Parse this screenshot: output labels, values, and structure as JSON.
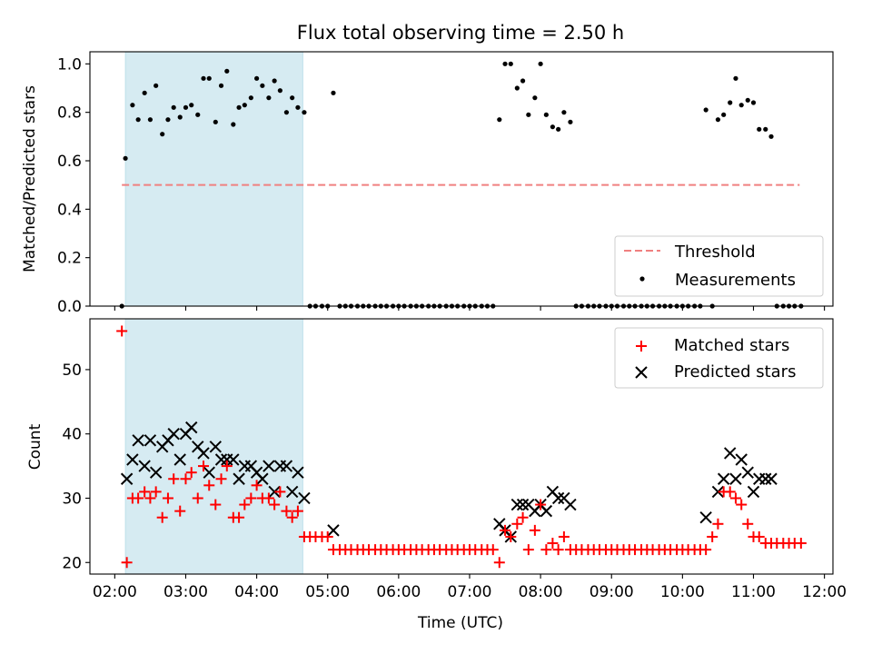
{
  "chart_data": [
    {
      "type": "scatter",
      "title": "Flux total observing time = 2.50 h",
      "xlabel": "",
      "ylabel": "Matched/Predicted stars",
      "xlim": [
        1.65,
        12.12
      ],
      "ylim": [
        0.0,
        1.05
      ],
      "yticks": [
        0.0,
        0.2,
        0.4,
        0.6,
        0.8,
        1.0
      ],
      "ytick_labels": [
        "0.0",
        "0.2",
        "0.4",
        "0.6",
        "0.8",
        "1.0"
      ],
      "highlight_span": [
        2.15,
        4.65
      ],
      "colors": {
        "highlight": "#add8e6",
        "threshold": "#f08080",
        "measurements": "#000000"
      },
      "legend": {
        "placement": "lower right",
        "entries": [
          "Threshold",
          "Measurements"
        ]
      },
      "threshold": {
        "name": "Threshold",
        "y": 0.5,
        "x_range": [
          2.1,
          11.65
        ]
      },
      "series": [
        {
          "name": "Measurements",
          "x": [
            2.1,
            2.15,
            2.25,
            2.33,
            2.42,
            2.5,
            2.58,
            2.67,
            2.75,
            2.83,
            2.92,
            3.0,
            3.08,
            3.17,
            3.25,
            3.33,
            3.42,
            3.5,
            3.58,
            3.67,
            3.75,
            3.83,
            3.92,
            4.0,
            4.08,
            4.17,
            4.25,
            4.33,
            4.42,
            4.5,
            4.58,
            4.67,
            4.75,
            4.83,
            4.92,
            5.0,
            5.08,
            5.17,
            5.25,
            5.33,
            5.42,
            5.5,
            5.58,
            5.67,
            5.75,
            5.83,
            5.92,
            6.0,
            6.08,
            6.17,
            6.25,
            6.33,
            6.42,
            6.5,
            6.58,
            6.67,
            6.75,
            6.83,
            6.92,
            7.0,
            7.08,
            7.17,
            7.25,
            7.33,
            7.42,
            7.5,
            7.58,
            7.67,
            7.75,
            7.83,
            7.92,
            8.0,
            8.08,
            8.17,
            8.25,
            8.33,
            8.42,
            8.5,
            8.58,
            8.67,
            8.75,
            8.83,
            8.92,
            9.0,
            9.08,
            9.17,
            9.25,
            9.33,
            9.42,
            9.5,
            9.58,
            9.67,
            9.75,
            9.83,
            9.92,
            10.0,
            10.08,
            10.17,
            10.25,
            10.33,
            10.42,
            10.5,
            10.58,
            10.67,
            10.75,
            10.83,
            10.92,
            11.0,
            11.08,
            11.17,
            11.25,
            11.33,
            11.42,
            11.5,
            11.58,
            11.67
          ],
          "y": [
            0.0,
            0.61,
            0.83,
            0.77,
            0.88,
            0.77,
            0.91,
            0.71,
            0.77,
            0.82,
            0.78,
            0.82,
            0.83,
            0.79,
            0.94,
            0.94,
            0.76,
            0.91,
            0.97,
            0.75,
            0.82,
            0.83,
            0.86,
            0.94,
            0.91,
            0.86,
            0.93,
            0.89,
            0.8,
            0.86,
            0.82,
            0.8,
            0.0,
            0.0,
            0.0,
            0.0,
            0.88,
            0.0,
            0.0,
            0.0,
            0.0,
            0.0,
            0.0,
            0.0,
            0.0,
            0.0,
            0.0,
            0.0,
            0.0,
            0.0,
            0.0,
            0.0,
            0.0,
            0.0,
            0.0,
            0.0,
            0.0,
            0.0,
            0.0,
            0.0,
            0.0,
            0.0,
            0.0,
            0.0,
            0.77,
            1.0,
            1.0,
            0.9,
            0.93,
            0.79,
            0.86,
            1.0,
            0.79,
            0.74,
            0.73,
            0.8,
            0.76,
            0.0,
            0.0,
            0.0,
            0.0,
            0.0,
            0.0,
            0.0,
            0.0,
            0.0,
            0.0,
            0.0,
            0.0,
            0.0,
            0.0,
            0.0,
            0.0,
            0.0,
            0.0,
            0.0,
            0.0,
            0.0,
            0.0,
            0.81,
            0.0,
            0.77,
            0.79,
            0.84,
            0.94,
            0.83,
            0.85,
            0.84,
            0.73,
            0.73,
            0.7,
            0.0,
            0.0,
            0.0,
            0.0,
            0.0
          ]
        }
      ]
    },
    {
      "type": "scatter",
      "title": "",
      "xlabel": "Time (UTC)",
      "ylabel": "Count",
      "xlim": [
        1.65,
        12.12
      ],
      "ylim": [
        18.2,
        57.9
      ],
      "yticks": [
        20,
        30,
        40,
        50
      ],
      "ytick_labels": [
        "20",
        "30",
        "40",
        "50"
      ],
      "xticks": [
        2,
        3,
        4,
        5,
        6,
        7,
        8,
        9,
        10,
        11,
        12
      ],
      "xtick_labels": [
        "02:00",
        "03:00",
        "04:00",
        "05:00",
        "06:00",
        "07:00",
        "08:00",
        "09:00",
        "10:00",
        "11:00",
        "12:00"
      ],
      "highlight_span": [
        2.15,
        4.65
      ],
      "colors": {
        "highlight": "#add8e6",
        "matched": "#ff0000",
        "predicted": "#000000"
      },
      "legend": {
        "placement": "upper right",
        "entries": [
          "Matched stars",
          "Predicted stars"
        ]
      },
      "series": [
        {
          "name": "Matched stars",
          "x": [
            2.1,
            2.17,
            2.25,
            2.33,
            2.42,
            2.5,
            2.58,
            2.67,
            2.75,
            2.83,
            2.92,
            3.0,
            3.08,
            3.17,
            3.25,
            3.33,
            3.42,
            3.5,
            3.58,
            3.67,
            3.75,
            3.83,
            3.92,
            4.0,
            4.08,
            4.17,
            4.25,
            4.33,
            4.42,
            4.5,
            4.58,
            4.67,
            4.75,
            4.83,
            4.92,
            5.0,
            5.08,
            5.17,
            5.25,
            5.33,
            5.42,
            5.5,
            5.58,
            5.67,
            5.75,
            5.83,
            5.92,
            6.0,
            6.08,
            6.17,
            6.25,
            6.33,
            6.42,
            6.5,
            6.58,
            6.67,
            6.75,
            6.83,
            6.92,
            7.0,
            7.08,
            7.17,
            7.25,
            7.33,
            7.42,
            7.5,
            7.58,
            7.67,
            7.75,
            7.83,
            7.92,
            8.0,
            8.08,
            8.17,
            8.25,
            8.33,
            8.42,
            8.5,
            8.58,
            8.67,
            8.75,
            8.83,
            8.92,
            9.0,
            9.08,
            9.17,
            9.25,
            9.33,
            9.42,
            9.5,
            9.58,
            9.67,
            9.75,
            9.83,
            9.92,
            10.0,
            10.08,
            10.17,
            10.25,
            10.33,
            10.42,
            10.5,
            10.58,
            10.67,
            10.75,
            10.83,
            10.92,
            11.0,
            11.08,
            11.17,
            11.25,
            11.33,
            11.42,
            11.5,
            11.58,
            11.67
          ],
          "y": [
            56,
            20,
            30,
            30,
            31,
            30,
            31,
            27,
            30,
            33,
            28,
            33,
            34,
            30,
            35,
            32,
            29,
            33,
            35,
            27,
            27,
            29,
            30,
            32,
            30,
            30,
            29,
            31,
            28,
            27,
            28,
            24,
            24,
            24,
            24,
            24,
            22,
            22,
            22,
            22,
            22,
            22,
            22,
            22,
            22,
            22,
            22,
            22,
            22,
            22,
            22,
            22,
            22,
            22,
            22,
            22,
            22,
            22,
            22,
            22,
            22,
            22,
            22,
            22,
            20,
            25,
            24,
            26,
            27,
            22,
            25,
            29,
            22,
            23,
            22,
            24,
            22,
            22,
            22,
            22,
            22,
            22,
            22,
            22,
            22,
            22,
            22,
            22,
            22,
            22,
            22,
            22,
            22,
            22,
            22,
            22,
            22,
            22,
            22,
            22,
            24,
            26,
            31,
            31,
            30,
            29,
            26,
            24,
            24,
            23,
            23,
            23,
            23,
            23,
            23,
            23
          ]
        },
        {
          "name": "Predicted stars",
          "x": [
            2.17,
            2.25,
            2.33,
            2.42,
            2.5,
            2.58,
            2.67,
            2.75,
            2.83,
            2.92,
            3.0,
            3.08,
            3.17,
            3.25,
            3.33,
            3.42,
            3.5,
            3.58,
            3.67,
            3.75,
            3.83,
            3.92,
            4.0,
            4.08,
            4.17,
            4.25,
            4.33,
            4.42,
            4.5,
            4.58,
            4.67,
            5.08,
            7.42,
            7.5,
            7.58,
            7.67,
            7.75,
            7.83,
            7.92,
            8.0,
            8.08,
            8.17,
            8.25,
            8.33,
            8.42,
            10.33,
            10.5,
            10.58,
            10.67,
            10.75,
            10.83,
            10.92,
            11.0,
            11.08,
            11.17,
            11.25
          ],
          "y": [
            33,
            36,
            39,
            35,
            39,
            34,
            38,
            39,
            40,
            36,
            40,
            41,
            38,
            37,
            34,
            38,
            36,
            36,
            36,
            33,
            35,
            35,
            34,
            33,
            35,
            31,
            35,
            35,
            31,
            34,
            30,
            25,
            26,
            25,
            24,
            29,
            29,
            29,
            28,
            29,
            28,
            31,
            30,
            30,
            29,
            27,
            31,
            33,
            37,
            33,
            36,
            34,
            31,
            33,
            33,
            33
          ]
        }
      ]
    }
  ]
}
